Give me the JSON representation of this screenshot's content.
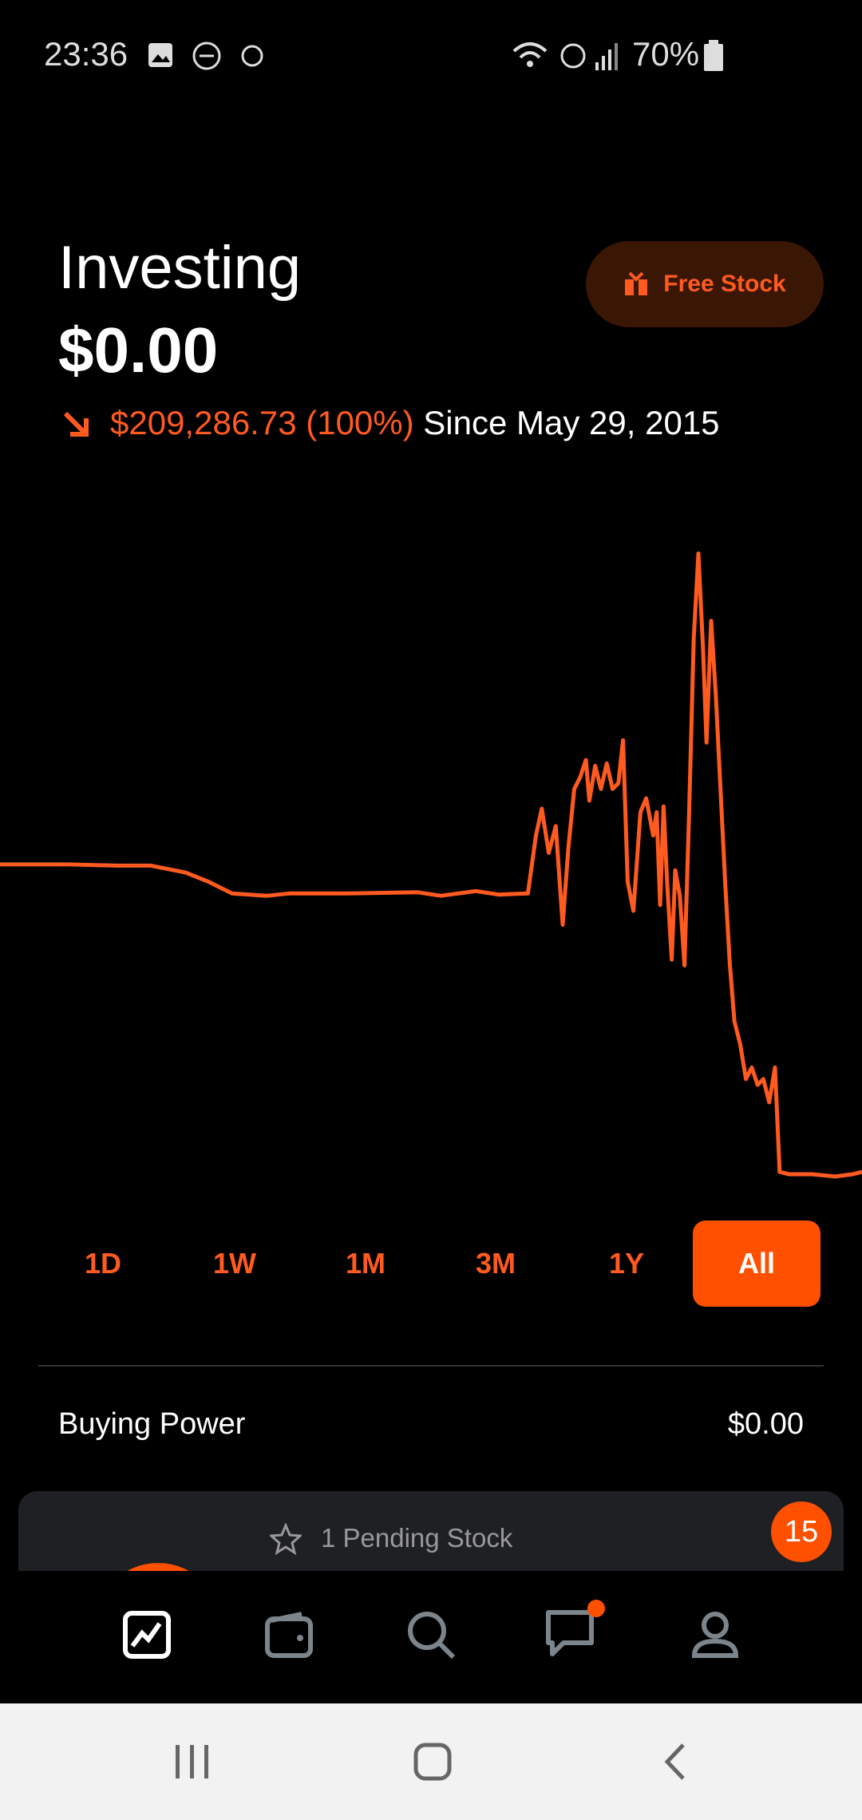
{
  "status_bar": {
    "time": "23:36",
    "battery": "70%"
  },
  "header": {
    "title": "Investing",
    "balance": "$0.00",
    "change": "$209,286.73 (100%)",
    "since": "Since May 29, 2015",
    "free_stock_button": "Free Stock"
  },
  "chart": {
    "type": "line",
    "color": "#ff5a1f",
    "x": [
      0,
      60,
      100,
      130,
      160,
      180,
      200,
      230,
      250,
      300,
      360,
      380,
      410,
      430,
      455,
      462,
      467,
      473,
      479,
      485,
      490,
      495,
      500,
      505,
      508,
      513,
      518,
      523,
      528,
      533,
      537,
      541,
      546,
      552,
      557,
      563,
      566,
      569,
      572,
      575,
      579,
      582,
      586,
      590,
      594,
      598,
      602,
      606,
      609,
      613,
      617,
      621,
      625,
      629,
      633,
      638,
      643,
      648,
      653,
      658,
      663,
      668,
      672,
      680,
      700,
      720,
      735,
      743
    ],
    "values": [
      267,
      267,
      266,
      266,
      260,
      252,
      242,
      240,
      242,
      242,
      243,
      240,
      244,
      241,
      242,
      292,
      315,
      277,
      300,
      215,
      282,
      332,
      342,
      357,
      322,
      352,
      332,
      354,
      332,
      337,
      374,
      252,
      227,
      312,
      324,
      292,
      312,
      232,
      317,
      252,
      185,
      262,
      240,
      180,
      312,
      462,
      535,
      452,
      372,
      477,
      412,
      332,
      252,
      182,
      132,
      112,
      82,
      92,
      77,
      82,
      62,
      92,
      2,
      0,
      0,
      -2,
      0,
      2
    ],
    "xlim": [
      0,
      743
    ],
    "ylim": [
      -8,
      552
    ]
  },
  "periods": [
    "1D",
    "1W",
    "1M",
    "3M",
    "1Y",
    "All"
  ],
  "selected_period": 5,
  "buying_power": {
    "label": "Buying Power",
    "value": "$0.00"
  },
  "pending_card": {
    "text": "1 Pending Stock",
    "badge": "15"
  }
}
